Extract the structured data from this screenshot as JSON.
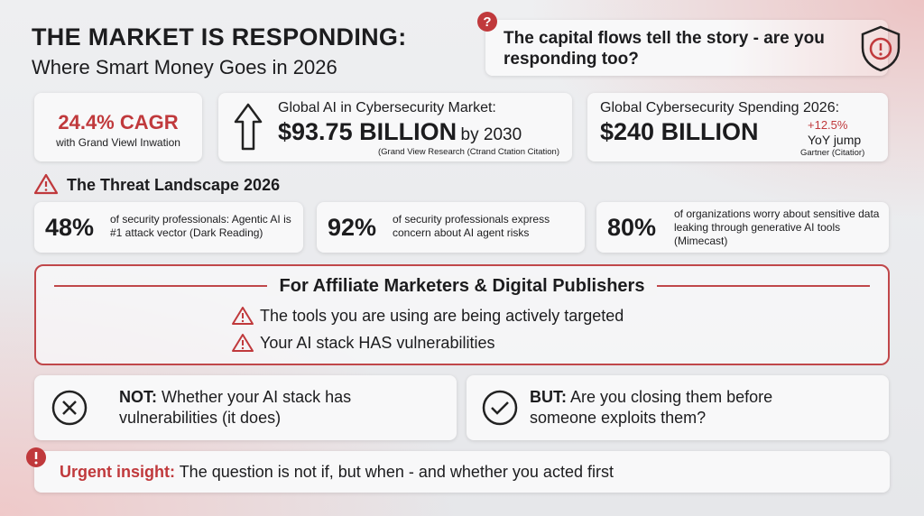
{
  "header": {
    "title": "THE MARKET IS RESPONDING:",
    "subtitle": "Where Smart Money Goes in 2026"
  },
  "callout": {
    "text": "The capital flows tell the story - are you responding too?"
  },
  "stats": [
    {
      "value": "24.4% CAGR",
      "note": "with Grand Viewl Inwation"
    },
    {
      "label": "Global AI in Cybersecurity Market:",
      "value": "$93.75 BILLION",
      "suffix": "by 2030",
      "source": "(Grand View Research (Ctrand Ctation Citation)"
    },
    {
      "label": "Global Cybersecurity Spending 2026:",
      "value": "$240 BILLION",
      "change": "+12.5%",
      "change_note": "YoY jump",
      "source": "Gartner (Citatior)"
    }
  ],
  "threats": {
    "title": "The Threat Landscape 2026",
    "items": [
      {
        "value": "48%",
        "text": "of security professionals: Agentic AI is #1 attack vector (Dark Reading)"
      },
      {
        "value": "92%",
        "text": "of security professionals express concern about AI agent risks"
      },
      {
        "value": "80%",
        "text": "of organizations worry about sensitive data leaking through generative AI tools (Mimecast)"
      }
    ]
  },
  "affiliate": {
    "title": "For Affiliate Marketers & Digital Publishers",
    "items": [
      "The tools you are using are being actively targeted",
      "Your AI stack HAS vulnerabilities"
    ]
  },
  "contrast": [
    {
      "label": "NOT:",
      "text": "Whether your AI stack has vulnerabilities (it does)"
    },
    {
      "label": "BUT:",
      "text": "Are you closing them before someone exploits them?"
    }
  ],
  "insight": {
    "label": "Urgent insight:",
    "text": "The question is not if, but when - and whether you acted first"
  }
}
